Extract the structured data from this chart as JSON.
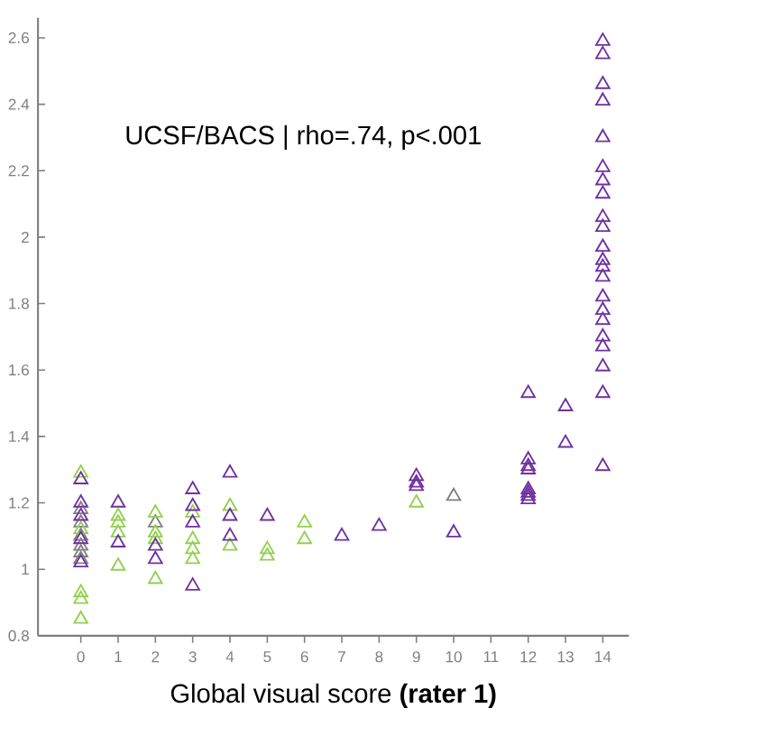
{
  "chart_data": {
    "type": "scatter",
    "xlabel": "Global visual score **(rater 1)**",
    "annotations": [
      "UCSF/BACS  |  rho=.74, p<.001"
    ],
    "xlim": [
      -1.15,
      14.7
    ],
    "ylim": [
      0.8,
      2.66
    ],
    "xticks": [
      0,
      1,
      2,
      3,
      4,
      5,
      6,
      7,
      8,
      9,
      10,
      11,
      12,
      13,
      14
    ],
    "yticks": [
      0.8,
      1,
      1.2,
      1.4,
      1.6,
      1.8,
      2,
      2.2,
      2.4,
      2.6
    ],
    "grid": false,
    "marker": "triangle",
    "series": [
      {
        "color": "#808080",
        "x": [
          0,
          0,
          0,
          0,
          0,
          0,
          2,
          10
        ],
        "values": [
          1.18,
          1.14,
          1.1,
          1.07,
          1.05,
          1.03,
          1.14,
          1.22
        ]
      },
      {
        "color": "#92d050",
        "x": [
          0,
          0,
          0,
          0,
          0,
          1,
          1,
          1,
          1,
          2,
          2,
          2,
          2,
          3,
          3,
          3,
          3,
          4,
          4,
          5,
          5,
          6,
          6,
          9
        ],
        "values": [
          1.29,
          1.12,
          0.93,
          0.91,
          0.85,
          1.16,
          1.14,
          1.11,
          1.01,
          1.17,
          1.11,
          1.09,
          0.97,
          1.17,
          1.09,
          1.06,
          1.03,
          1.19,
          1.07,
          1.06,
          1.04,
          1.14,
          1.09,
          1.2
        ]
      },
      {
        "color": "#7030a0",
        "x": [
          0,
          0,
          0,
          0,
          0,
          1,
          1,
          2,
          2,
          3,
          3,
          3,
          3,
          4,
          4,
          4,
          5,
          7,
          8,
          9,
          9,
          9,
          10,
          12,
          12,
          12,
          12,
          12,
          12,
          12,
          12,
          13,
          13,
          14,
          14,
          14,
          14,
          14,
          14,
          14,
          14,
          14,
          14,
          14,
          14,
          14,
          14,
          14,
          14,
          14,
          14,
          14,
          14,
          14,
          14
        ],
        "values": [
          1.27,
          1.2,
          1.16,
          1.09,
          1.02,
          1.2,
          1.08,
          1.07,
          1.03,
          1.24,
          1.19,
          1.14,
          0.95,
          1.29,
          1.16,
          1.1,
          1.16,
          1.1,
          1.13,
          1.28,
          1.26,
          1.25,
          1.11,
          1.53,
          1.33,
          1.31,
          1.3,
          1.24,
          1.23,
          1.22,
          1.21,
          1.49,
          1.38,
          2.59,
          2.55,
          2.46,
          2.41,
          2.3,
          2.21,
          2.17,
          2.13,
          2.06,
          2.03,
          1.97,
          1.93,
          1.91,
          1.88,
          1.82,
          1.78,
          1.75,
          1.7,
          1.67,
          1.61,
          1.53,
          1.31
        ]
      }
    ]
  }
}
